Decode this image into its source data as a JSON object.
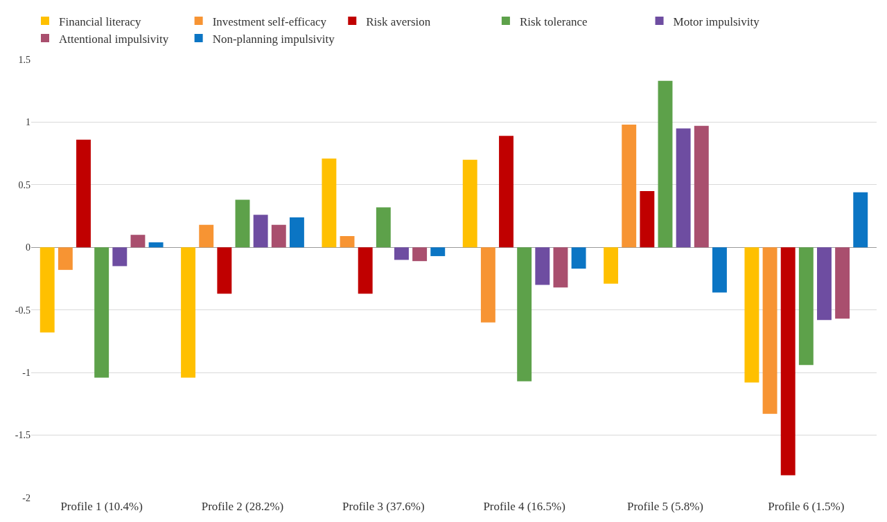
{
  "chart_data": {
    "type": "bar",
    "categories": [
      "Profile 1 (10.4%)",
      "Profile 2 (28.2%)",
      "Profile 3 (37.6%)",
      "Profile 4 (16.5%)",
      "Profile 5 (5.8%)",
      "Profile 6 (1.5%)"
    ],
    "series": [
      {
        "name": "Financial literacy",
        "color": "#ffc000",
        "values": [
          -0.68,
          -1.04,
          0.71,
          0.7,
          -0.29,
          -1.08
        ]
      },
      {
        "name": "Investment self-efficacy",
        "color": "#f79433",
        "values": [
          -0.18,
          0.18,
          0.09,
          -0.6,
          0.98,
          -1.33
        ]
      },
      {
        "name": "Risk aversion",
        "color": "#c00000",
        "values": [
          0.86,
          -0.37,
          -0.37,
          0.89,
          0.45,
          -1.82
        ]
      },
      {
        "name": "Risk tolerance",
        "color": "#5da14a",
        "values": [
          -1.04,
          0.38,
          0.32,
          -1.07,
          1.33,
          -0.94
        ]
      },
      {
        "name": "Motor impulsivity",
        "color": "#6e4da1",
        "values": [
          -0.15,
          0.26,
          -0.1,
          -0.3,
          0.95,
          -0.58
        ]
      },
      {
        "name": "Attentional impulsivity",
        "color": "#a94f6e",
        "values": [
          0.1,
          0.18,
          -0.11,
          -0.32,
          0.97,
          -0.57
        ]
      },
      {
        "name": "Non-planning impulsivity",
        "color": "#0b75c4",
        "values": [
          0.04,
          0.24,
          -0.07,
          -0.17,
          -0.36,
          0.44
        ]
      }
    ],
    "ylim": [
      -2,
      1.5
    ],
    "yticks": [
      {
        "value": -2,
        "label": "-2"
      },
      {
        "value": -1.5,
        "label": "-1.5"
      },
      {
        "value": -1,
        "label": "-1"
      },
      {
        "value": -0.5,
        "label": "-0.5"
      },
      0,
      0.5,
      1,
      1.5
    ],
    "grid": "y",
    "legend": "top left"
  }
}
